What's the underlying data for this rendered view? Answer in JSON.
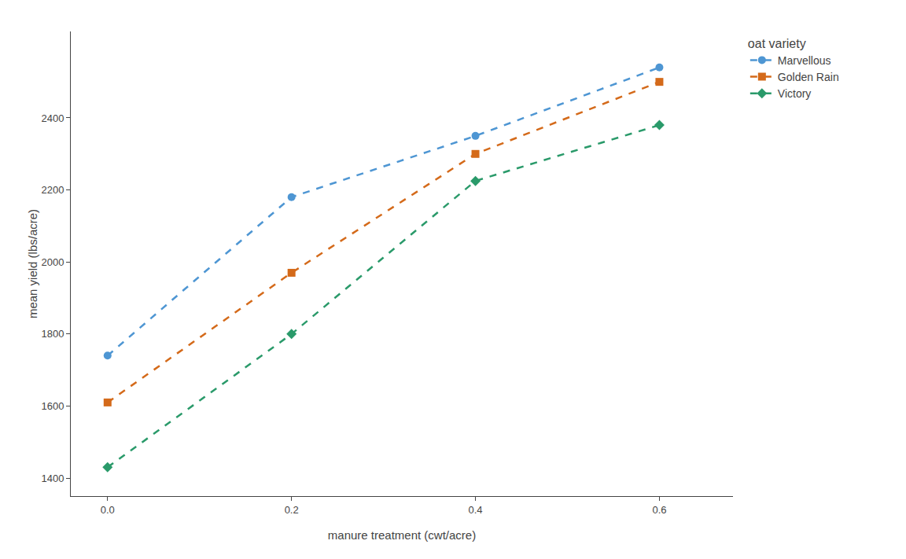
{
  "chart_data": {
    "type": "line",
    "x_label": "manure treatment (cwt/acre)",
    "y_label": "mean yield (lbs/acre)",
    "legend_title": "oat variety",
    "x": [
      0.0,
      0.2,
      0.4,
      0.6
    ],
    "series": [
      {
        "name": "Marvellous",
        "color": "#4e96d3",
        "marker": "circle",
        "line_style": "dashed",
        "values": [
          1740,
          2180,
          2350,
          2540
        ]
      },
      {
        "name": "Golden Rain",
        "color": "#d46a1a",
        "marker": "square",
        "line_style": "dashed",
        "values": [
          1610,
          1970,
          2300,
          2500
        ]
      },
      {
        "name": "Victory",
        "color": "#2a9a6a",
        "marker": "diamond",
        "line_style": "dashed",
        "values": [
          1430,
          1800,
          2225,
          2380
        ]
      }
    ],
    "xlim": [
      -0.04,
      0.68
    ],
    "ylim": [
      1350,
      2640
    ],
    "xticks": [
      {
        "value": 0,
        "label": "0.0"
      },
      0.2,
      0.4,
      0.6
    ],
    "yticks": [
      1400,
      1600,
      1800,
      2000,
      2200,
      2400
    ],
    "grid": false,
    "legend": "right"
  }
}
